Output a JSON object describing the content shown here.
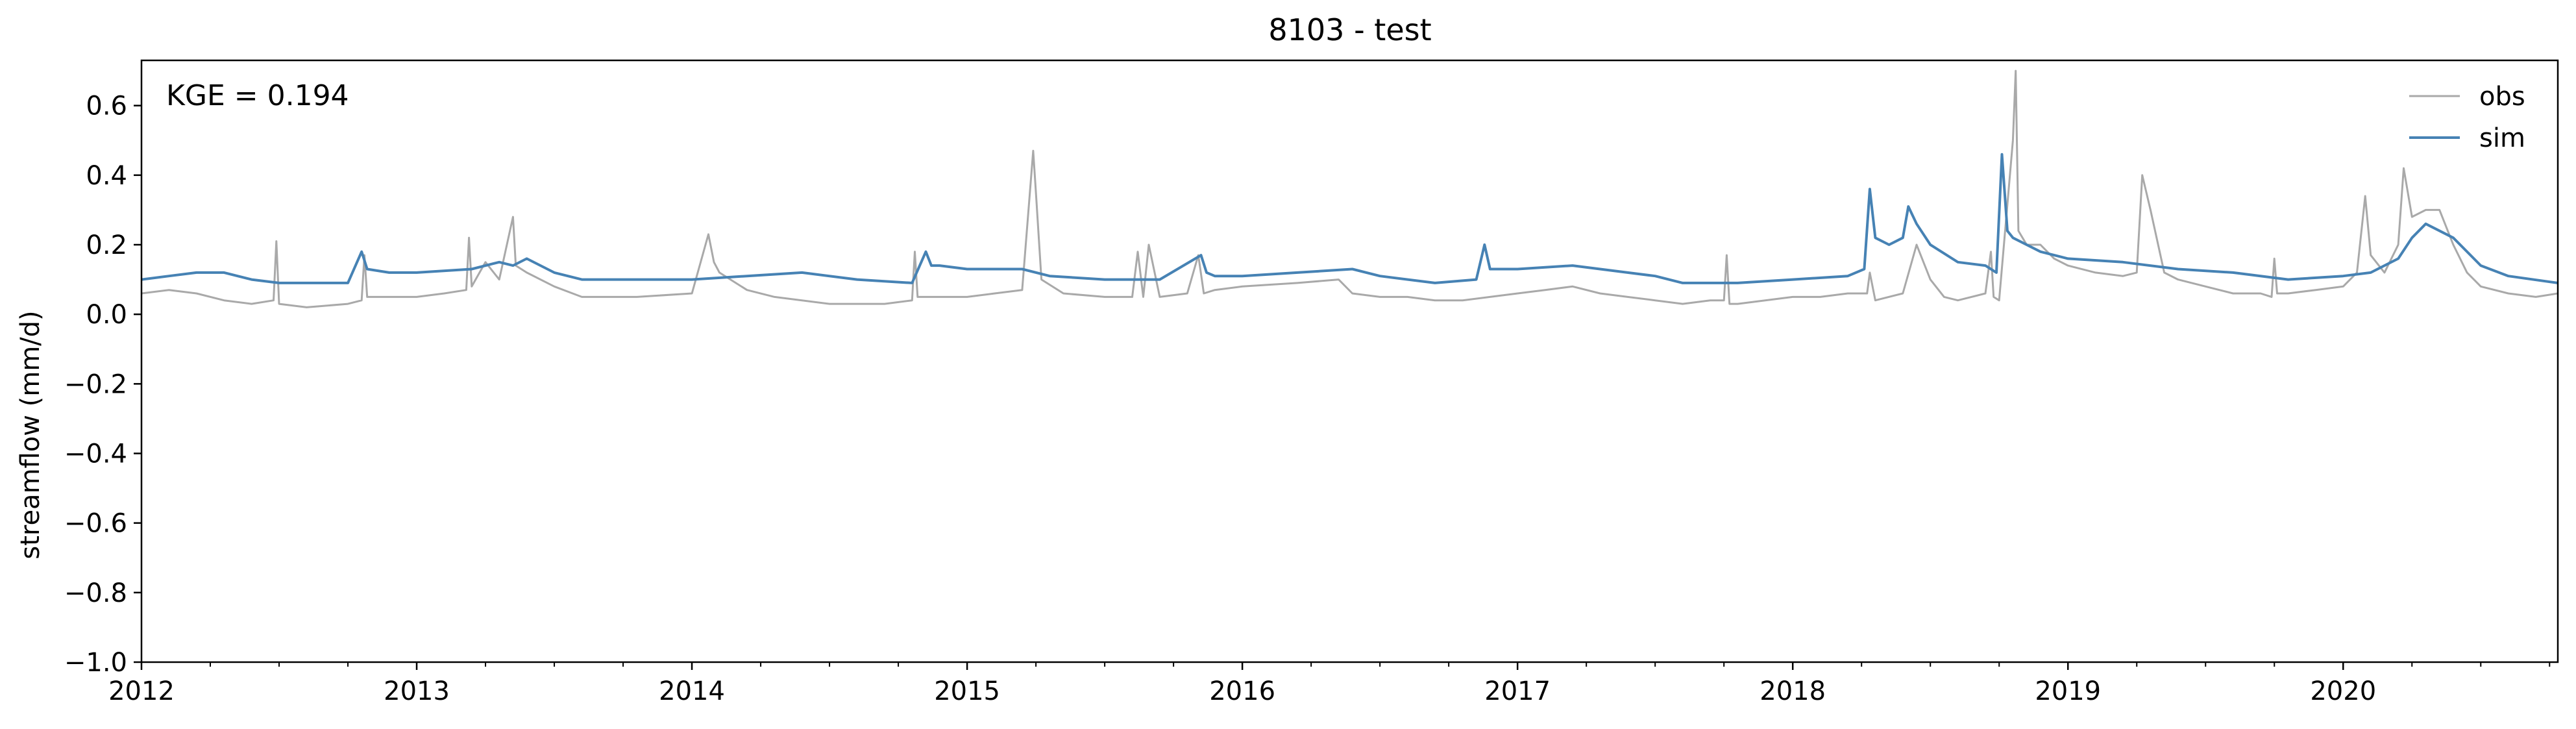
{
  "chart_data": {
    "type": "line",
    "title": "8103 - test",
    "xlabel": "",
    "ylabel": "streamflow (mm/d)",
    "annotation": "KGE = 0.194",
    "x_range": [
      2012.0,
      2020.78
    ],
    "ylim": [
      -1.0,
      0.73
    ],
    "x_ticks": [
      2012,
      2013,
      2014,
      2015,
      2016,
      2017,
      2018,
      2019,
      2020
    ],
    "x_tick_labels": [
      "2012",
      "2013",
      "2014",
      "2015",
      "2016",
      "2017",
      "2018",
      "2019",
      "2020"
    ],
    "y_ticks": [
      -1.0,
      -0.8,
      -0.6,
      -0.4,
      -0.2,
      0.0,
      0.2,
      0.4,
      0.6
    ],
    "y_tick_labels": [
      "−1.0",
      "−0.8",
      "−0.6",
      "−0.4",
      "−0.2",
      "0.0",
      "0.2",
      "0.4",
      "0.6"
    ],
    "legend_position": "top-right",
    "grid": false,
    "series": [
      {
        "name": "obs",
        "color": "#a9a9a9",
        "x": [
          2012.0,
          2012.1,
          2012.2,
          2012.3,
          2012.4,
          2012.48,
          2012.49,
          2012.5,
          2012.6,
          2012.75,
          2012.8,
          2012.81,
          2012.82,
          2012.9,
          2013.0,
          2013.1,
          2013.18,
          2013.19,
          2013.2,
          2013.25,
          2013.3,
          2013.35,
          2013.36,
          2013.4,
          2013.5,
          2013.6,
          2013.8,
          2014.0,
          2014.06,
          2014.08,
          2014.1,
          2014.2,
          2014.3,
          2014.5,
          2014.7,
          2014.8,
          2014.81,
          2014.82,
          2014.9,
          2015.0,
          2015.1,
          2015.2,
          2015.24,
          2015.25,
          2015.27,
          2015.35,
          2015.5,
          2015.6,
          2015.62,
          2015.64,
          2015.66,
          2015.7,
          2015.8,
          2015.84,
          2015.86,
          2015.9,
          2016.0,
          2016.2,
          2016.35,
          2016.4,
          2016.5,
          2016.6,
          2016.7,
          2016.8,
          2016.9,
          2017.0,
          2017.1,
          2017.2,
          2017.3,
          2017.4,
          2017.5,
          2017.6,
          2017.7,
          2017.75,
          2017.76,
          2017.77,
          2017.8,
          2017.9,
          2018.0,
          2018.1,
          2018.2,
          2018.27,
          2018.28,
          2018.3,
          2018.4,
          2018.45,
          2018.5,
          2018.55,
          2018.6,
          2018.7,
          2018.72,
          2018.73,
          2018.75,
          2018.8,
          2018.81,
          2018.82,
          2018.85,
          2018.9,
          2018.95,
          2019.0,
          2019.1,
          2019.2,
          2019.25,
          2019.27,
          2019.3,
          2019.35,
          2019.4,
          2019.5,
          2019.6,
          2019.7,
          2019.74,
          2019.75,
          2019.76,
          2019.8,
          2019.9,
          2020.0,
          2020.05,
          2020.08,
          2020.1,
          2020.15,
          2020.2,
          2020.22,
          2020.25,
          2020.3,
          2020.35,
          2020.4,
          2020.45,
          2020.5,
          2020.6,
          2020.7,
          2020.78
        ],
        "values": [
          0.06,
          0.07,
          0.06,
          0.04,
          0.03,
          0.04,
          0.21,
          0.03,
          0.02,
          0.03,
          0.04,
          0.17,
          0.05,
          0.05,
          0.05,
          0.06,
          0.07,
          0.22,
          0.08,
          0.15,
          0.1,
          0.28,
          0.14,
          0.12,
          0.08,
          0.05,
          0.05,
          0.06,
          0.23,
          0.15,
          0.12,
          0.07,
          0.05,
          0.03,
          0.03,
          0.04,
          0.18,
          0.05,
          0.05,
          0.05,
          0.06,
          0.07,
          0.47,
          0.35,
          0.1,
          0.06,
          0.05,
          0.05,
          0.18,
          0.05,
          0.2,
          0.05,
          0.06,
          0.17,
          0.06,
          0.07,
          0.08,
          0.09,
          0.1,
          0.06,
          0.05,
          0.05,
          0.04,
          0.04,
          0.05,
          0.06,
          0.07,
          0.08,
          0.06,
          0.05,
          0.04,
          0.03,
          0.04,
          0.04,
          0.17,
          0.03,
          0.03,
          0.04,
          0.05,
          0.05,
          0.06,
          0.06,
          0.12,
          0.04,
          0.06,
          0.2,
          0.1,
          0.05,
          0.04,
          0.06,
          0.18,
          0.05,
          0.04,
          0.5,
          0.7,
          0.24,
          0.2,
          0.2,
          0.16,
          0.14,
          0.12,
          0.11,
          0.12,
          0.4,
          0.3,
          0.12,
          0.1,
          0.08,
          0.06,
          0.06,
          0.05,
          0.16,
          0.06,
          0.06,
          0.07,
          0.08,
          0.12,
          0.34,
          0.17,
          0.12,
          0.2,
          0.42,
          0.28,
          0.3,
          0.3,
          0.2,
          0.12,
          0.08,
          0.06,
          0.05,
          0.06
        ]
      },
      {
        "name": "sim",
        "color": "#4682b4",
        "x": [
          2012.0,
          2012.1,
          2012.2,
          2012.3,
          2012.4,
          2012.5,
          2012.6,
          2012.75,
          2012.8,
          2012.82,
          2012.9,
          2013.0,
          2013.2,
          2013.3,
          2013.35,
          2013.4,
          2013.5,
          2013.6,
          2013.8,
          2014.0,
          2014.2,
          2014.4,
          2014.6,
          2014.8,
          2014.85,
          2014.87,
          2014.9,
          2015.0,
          2015.2,
          2015.3,
          2015.5,
          2015.7,
          2015.85,
          2015.87,
          2015.9,
          2016.0,
          2016.2,
          2016.4,
          2016.5,
          2016.7,
          2016.85,
          2016.88,
          2016.9,
          2017.0,
          2017.2,
          2017.4,
          2017.5,
          2017.6,
          2017.8,
          2018.0,
          2018.2,
          2018.26,
          2018.28,
          2018.3,
          2018.35,
          2018.4,
          2018.42,
          2018.45,
          2018.5,
          2018.6,
          2018.7,
          2018.74,
          2018.76,
          2018.78,
          2018.8,
          2018.9,
          2019.0,
          2019.2,
          2019.4,
          2019.6,
          2019.8,
          2020.0,
          2020.1,
          2020.2,
          2020.25,
          2020.3,
          2020.4,
          2020.5,
          2020.6,
          2020.78
        ],
        "values": [
          0.1,
          0.11,
          0.12,
          0.12,
          0.1,
          0.09,
          0.09,
          0.09,
          0.18,
          0.13,
          0.12,
          0.12,
          0.13,
          0.15,
          0.14,
          0.16,
          0.12,
          0.1,
          0.1,
          0.1,
          0.11,
          0.12,
          0.1,
          0.09,
          0.18,
          0.14,
          0.14,
          0.13,
          0.13,
          0.11,
          0.1,
          0.1,
          0.17,
          0.12,
          0.11,
          0.11,
          0.12,
          0.13,
          0.11,
          0.09,
          0.1,
          0.2,
          0.13,
          0.13,
          0.14,
          0.12,
          0.11,
          0.09,
          0.09,
          0.1,
          0.11,
          0.13,
          0.36,
          0.22,
          0.2,
          0.22,
          0.31,
          0.26,
          0.2,
          0.15,
          0.14,
          0.12,
          0.46,
          0.24,
          0.22,
          0.18,
          0.16,
          0.15,
          0.13,
          0.12,
          0.1,
          0.11,
          0.12,
          0.16,
          0.22,
          0.26,
          0.22,
          0.14,
          0.11,
          0.09
        ]
      }
    ]
  }
}
